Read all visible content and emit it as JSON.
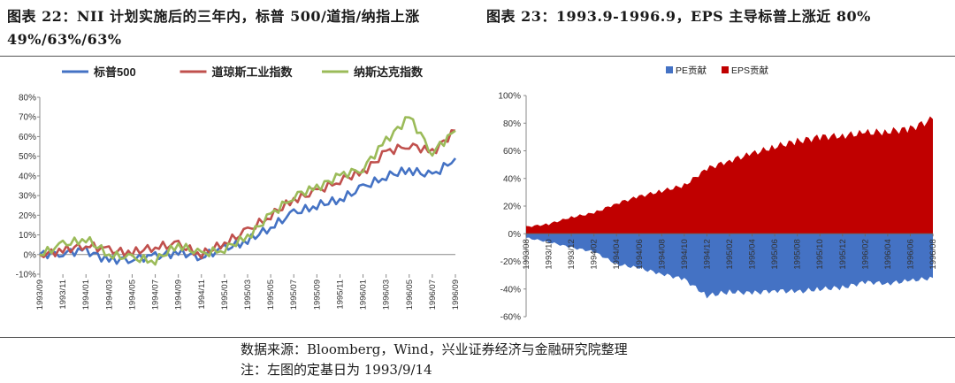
{
  "header": {
    "left_title": "图表  22：NII 计划实施后的三年内，标普 500/道指/纳指上涨 49%/63%/63%",
    "right_title": "图表  23：1993.9-1996.9，EPS 主导标普上涨近 80%"
  },
  "footer": {
    "source": "数据来源：Bloomberg，Wind，兴业证券经济与金融研究院整理",
    "note": "注：左图的定基日为 1993/9/14"
  },
  "chart_data": [
    {
      "type": "line",
      "title": "",
      "ylabel": "",
      "xlabel": "",
      "ylim": [
        -10,
        80
      ],
      "yticks": [
        "-10%",
        "0%",
        "10%",
        "20%",
        "30%",
        "40%",
        "50%",
        "60%",
        "70%",
        "80%"
      ],
      "categories": [
        "1993/09",
        "1993/11",
        "1994/01",
        "1994/03",
        "1994/05",
        "1994/07",
        "1994/09",
        "1994/11",
        "1995/01",
        "1995/03",
        "1995/05",
        "1995/07",
        "1995/09",
        "1995/11",
        "1996/01",
        "1996/03",
        "1996/05",
        "1996/07",
        "1996/09"
      ],
      "legend_position": "top",
      "series": [
        {
          "name": "标普500",
          "color": "#4472C4",
          "values": [
            0,
            1,
            2,
            -3,
            -2,
            -1,
            1,
            -1,
            3,
            7,
            14,
            21,
            25,
            28,
            34,
            40,
            43,
            40,
            49
          ]
        },
        {
          "name": "道琼斯工业指数",
          "color": "#C0504D",
          "values": [
            0,
            2,
            5,
            2,
            1,
            4,
            5,
            0,
            6,
            12,
            20,
            28,
            32,
            38,
            42,
            52,
            56,
            52,
            63
          ]
        },
        {
          "name": "纳斯达克指数",
          "color": "#9BBB59",
          "values": [
            0,
            5,
            8,
            0,
            -2,
            -3,
            5,
            0,
            3,
            9,
            20,
            30,
            34,
            40,
            44,
            58,
            70,
            52,
            63
          ]
        }
      ]
    },
    {
      "type": "area",
      "title": "",
      "ylim": [
        -60,
        100
      ],
      "yticks": [
        "-60%",
        "-40%",
        "-20%",
        "0%",
        "20%",
        "40%",
        "60%",
        "80%",
        "100%"
      ],
      "categories": [
        "1993/08",
        "1993/10",
        "1993/12",
        "1994/02",
        "1994/04",
        "1994/06",
        "1994/08",
        "1994/10",
        "1994/12",
        "1995/02",
        "1995/04",
        "1995/06",
        "1995/08",
        "1995/10",
        "1995/12",
        "1996/02",
        "1996/04",
        "1996/06",
        "1996/08"
      ],
      "legend_position": "top",
      "series": [
        {
          "name": "PE贡献",
          "color": "#4472C4",
          "values": [
            -3,
            -6,
            -10,
            -13,
            -22,
            -25,
            -29,
            -33,
            -45,
            -42,
            -43,
            -41,
            -42,
            -40,
            -39,
            -35,
            -36,
            -34,
            -32
          ]
        },
        {
          "name": "EPS贡献",
          "color": "#C00000",
          "values": [
            5,
            7,
            12,
            15,
            22,
            27,
            31,
            35,
            47,
            53,
            58,
            63,
            67,
            70,
            71,
            73,
            74,
            76,
            83
          ]
        }
      ]
    }
  ]
}
